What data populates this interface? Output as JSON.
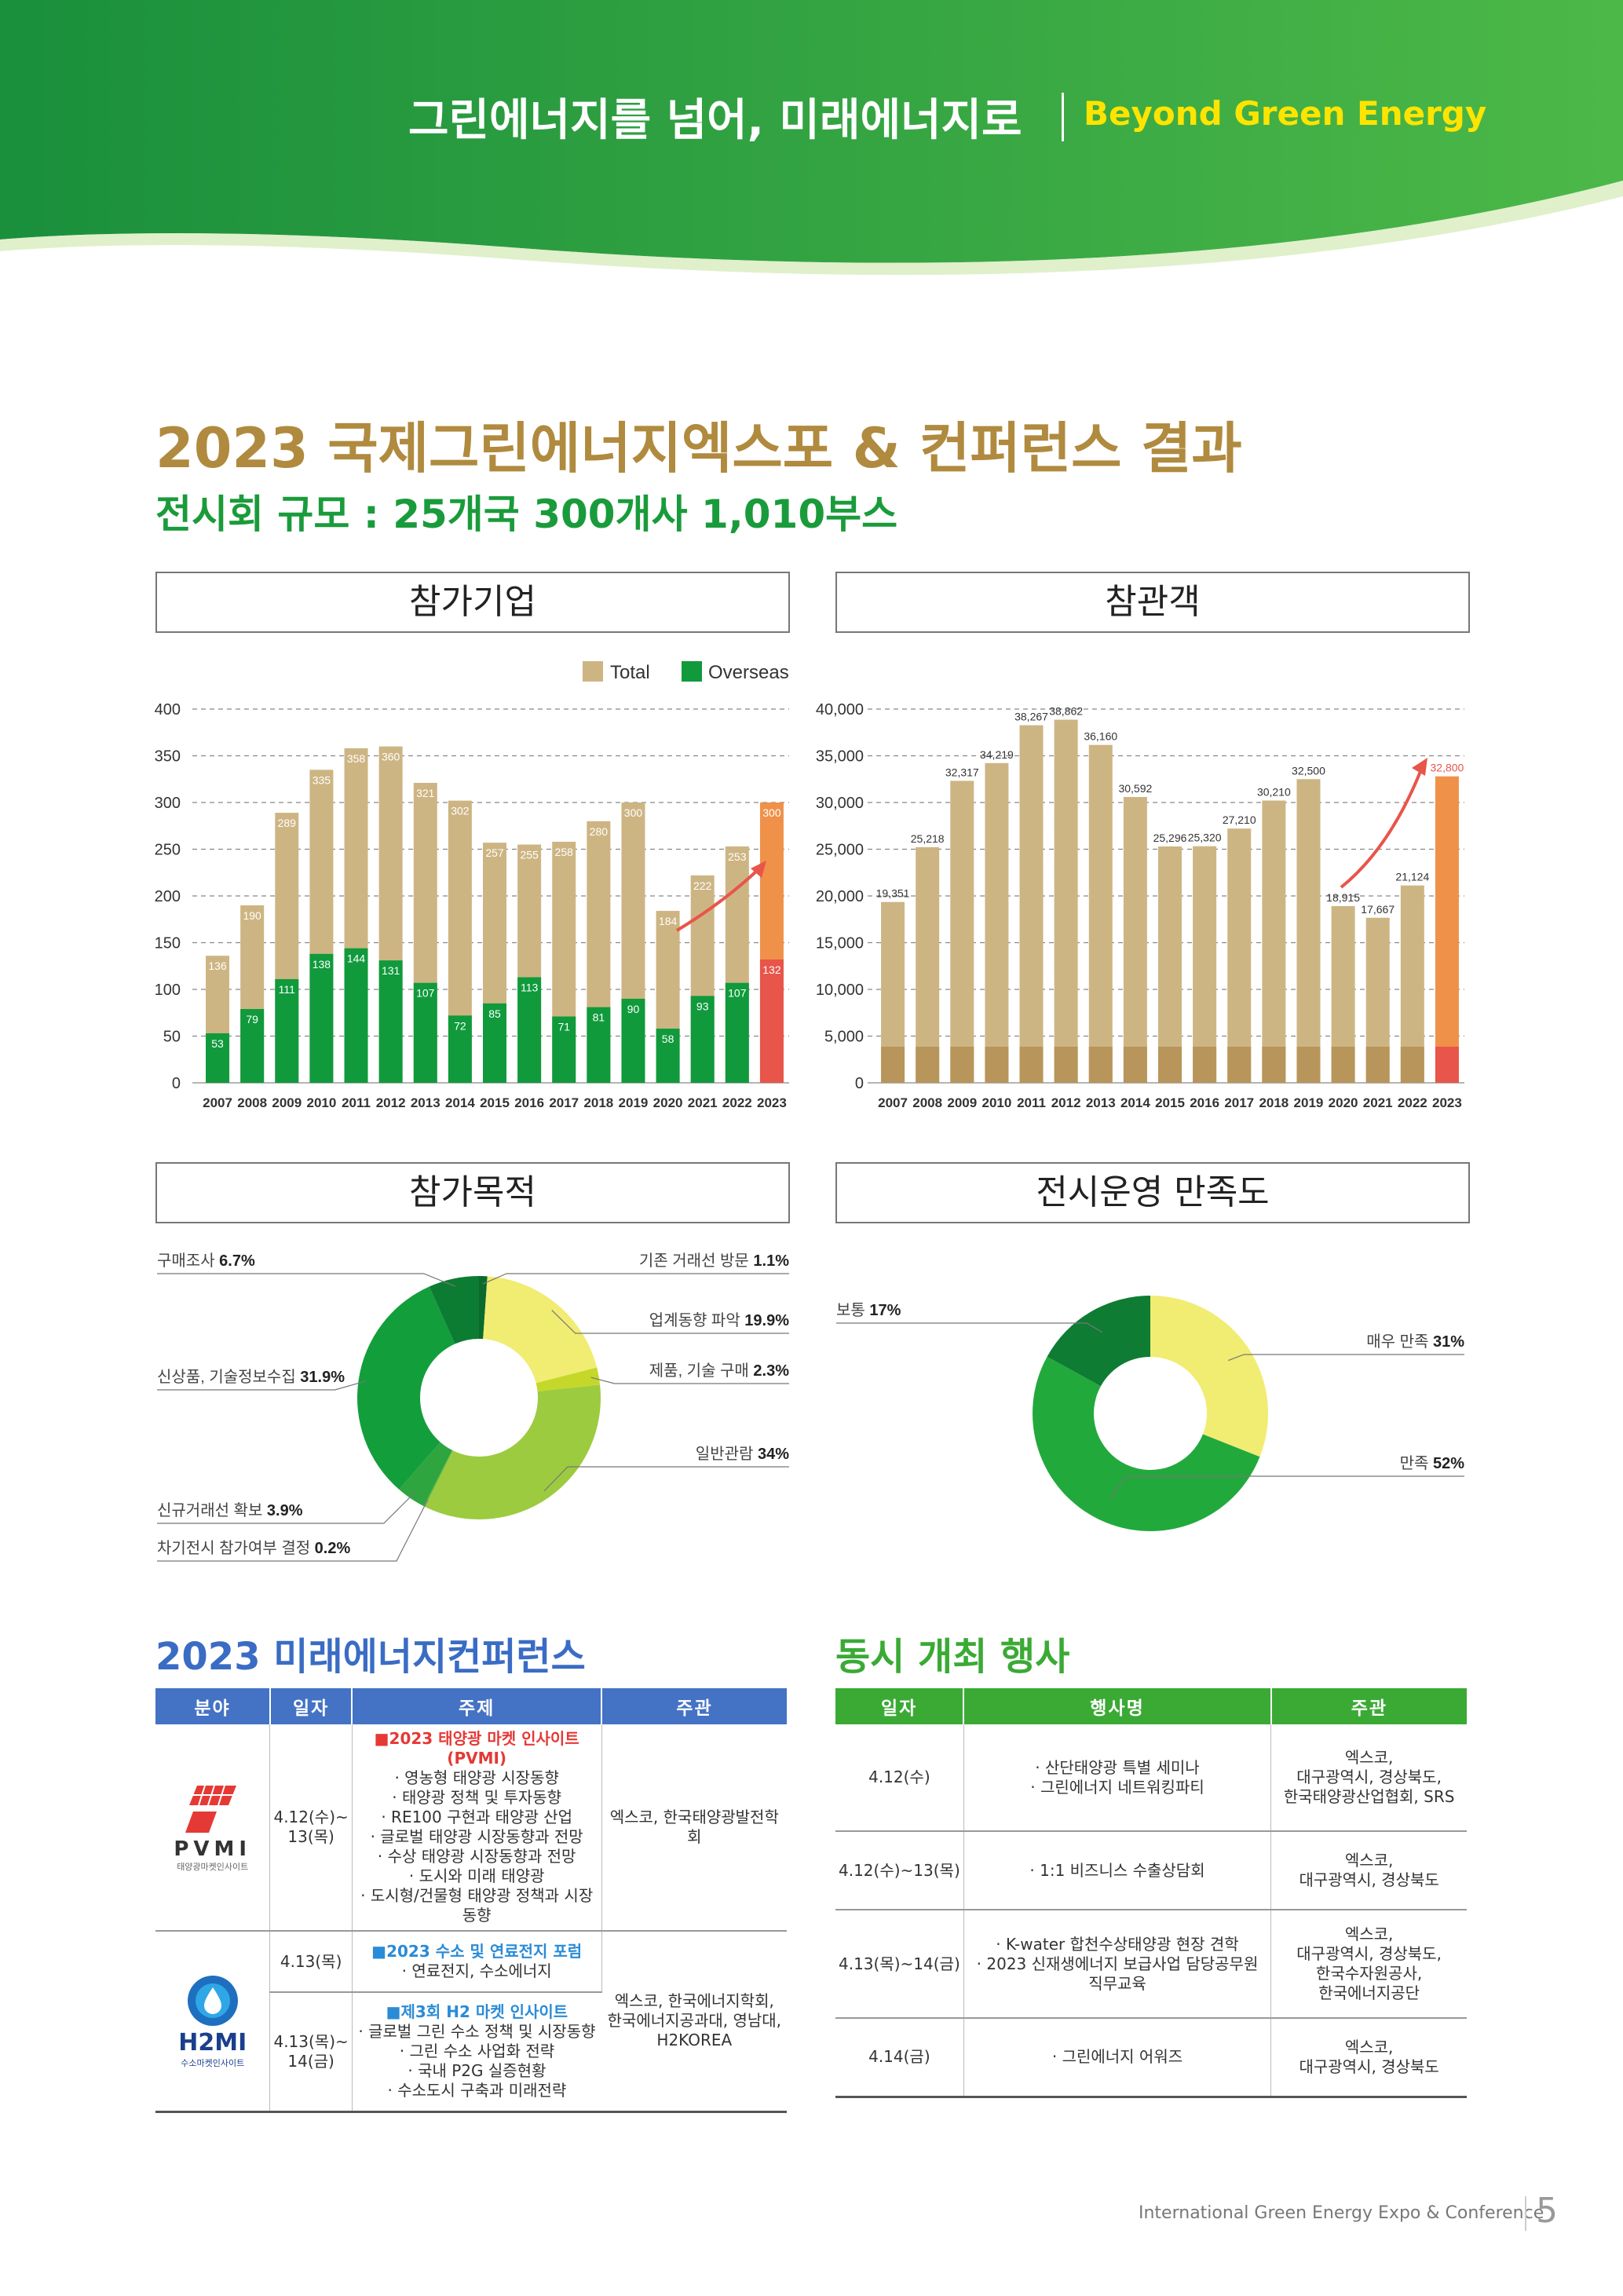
{
  "header": {
    "title": "그린에너지를 넘어, 미래에너지로",
    "subtitle": "Beyond Green Energy"
  },
  "main_title": "2023 국제그린에너지엑스포 & 컨퍼런스 결과",
  "sub_title": "전시회 규모 : 25개국 300개사 1,010부스",
  "sections": {
    "companies": "참가기업",
    "visitors": "참관객",
    "purpose": "참가목적",
    "satisfaction": "전시운영 만족도",
    "conference": "2023 미래에너지컨퍼런스",
    "events": "동시 개최 행사"
  },
  "colors": {
    "tan": "#cdb583",
    "green": "#109a3c",
    "orange": "#f0914a",
    "red": "#e8554a",
    "gold": "#b08a3e"
  },
  "chart_data": [
    {
      "type": "bar",
      "categories": [
        "2007",
        "2008",
        "2009",
        "2010",
        "2011",
        "2012",
        "2013",
        "2014",
        "2015",
        "2016",
        "2017",
        "2018",
        "2019",
        "2020",
        "2021",
        "2022",
        "2023"
      ],
      "series": [
        {
          "name": "Total",
          "values": [
            136,
            190,
            289,
            335,
            358,
            360,
            321,
            302,
            257,
            255,
            258,
            280,
            300,
            184,
            222,
            253,
            300
          ]
        },
        {
          "name": "Overseas",
          "values": [
            53,
            79,
            111,
            138,
            144,
            131,
            107,
            72,
            85,
            113,
            71,
            81,
            90,
            58,
            93,
            107,
            132
          ]
        }
      ],
      "yticks": [
        "0",
        "50",
        "100",
        "150",
        "200",
        "250",
        "300",
        "350",
        "400"
      ],
      "ylim": [
        0,
        400
      ],
      "legend": "top-right",
      "grid": true
    },
    {
      "type": "bar",
      "categories": [
        "2007",
        "2008",
        "2009",
        "2010",
        "2011",
        "2012",
        "2013",
        "2014",
        "2015",
        "2016",
        "2017",
        "2018",
        "2019",
        "2020",
        "2021",
        "2022",
        "2023"
      ],
      "values": [
        19351,
        25218,
        32317,
        34219,
        38267,
        38862,
        36160,
        30592,
        25296,
        25320,
        27210,
        30210,
        32500,
        18915,
        17667,
        21124,
        32800
      ],
      "value_labels": [
        "19,351",
        "25,218",
        "32,317",
        "34,219",
        "38,267",
        "38,862",
        "36,160",
        "30,592",
        "25,296",
        "25,320",
        "27,210",
        "30,210",
        "32,500",
        "18,915",
        "17,667",
        "21,124",
        "32,800"
      ],
      "yticks": [
        "0",
        "5,000",
        "10,000",
        "15,000",
        "20,000",
        "25,000",
        "30,000",
        "35,000",
        "40,000"
      ],
      "ylim": [
        0,
        40000
      ],
      "grid": true
    },
    {
      "type": "pie",
      "slices": [
        {
          "label": "기존 거래선 방문",
          "value": 1.1,
          "text": "1.1%",
          "color": "#0b6b2c"
        },
        {
          "label": "업계동향 파악",
          "value": 19.9,
          "text": "19.9%",
          "color": "#f1ec72"
        },
        {
          "label": "제품, 기술 구매",
          "value": 2.3,
          "text": "2.3%",
          "color": "#c5d82a"
        },
        {
          "label": "일반관람",
          "value": 34,
          "text": "34%",
          "color": "#9ccb3f"
        },
        {
          "label": "차기전시 참가여부 결정",
          "value": 0.2,
          "text": "0.2%",
          "color": "#6cb83a"
        },
        {
          "label": "신규거래선 확보",
          "value": 3.9,
          "text": "3.9%",
          "color": "#2ea53f"
        },
        {
          "label": "신상품, 기술정보수집",
          "value": 31.9,
          "text": "31.9%",
          "color": "#139e3c"
        },
        {
          "label": "구매조사",
          "value": 6.7,
          "text": "6.7%",
          "color": "#0d7c33"
        }
      ]
    },
    {
      "type": "pie",
      "slices": [
        {
          "label": "매우 만족",
          "value": 31,
          "text": "31%",
          "color": "#f1ec72"
        },
        {
          "label": "만족",
          "value": 52,
          "text": "52%",
          "color": "#22a93c"
        },
        {
          "label": "보통",
          "value": 17,
          "text": "17%",
          "color": "#0e7c33"
        }
      ]
    }
  ],
  "conference_table": {
    "headers": [
      "분야",
      "일자",
      "주제",
      "주관"
    ],
    "pvmi": {
      "logo": "PVMI",
      "logo_sub": "태양광마켓인사이트",
      "date": "4.12(수)~ 13(목)",
      "topic_title": "■2023 태양광 마켓 인사이트(PVMI)",
      "topics": [
        "· 영농형 태양광 시장동향",
        "· 태양광 정책 및 투자동향",
        "· RE100 구현과 태양광 산업",
        "· 글로벌 태양광 시장동향과 전망",
        "· 수상 태양광 시장동향과 전망",
        "· 도시와 미래 태양광",
        "· 도시형/건물형 태양광 정책과 시장동향"
      ],
      "host": "엑스코, 한국태양광발전학회"
    },
    "h2mi": {
      "logo": "H2MI",
      "logo_sub": "수소마켓인사이트",
      "row1_date": "4.13(목)",
      "row1_title": "■2023 수소 및 연료전지 포럼",
      "row1_topics": [
        "· 연료전지, 수소에너지"
      ],
      "row2_date": "4.13(목)~ 14(금)",
      "row2_title": "■제3회 H2 마켓 인사이트",
      "row2_topics": [
        "· 글로벌 그린 수소 정책 및 시장동향",
        "· 그린 수소 사업화 전략",
        "· 국내 P2G 실증현황",
        "· 수소도시 구축과 미래전략"
      ],
      "host": "엑스코, 한국에너지학회, 한국에너지공과대, 영남대, H2KOREA"
    }
  },
  "events_table": {
    "headers": [
      "일자",
      "행사명",
      "주관"
    ],
    "rows": [
      {
        "date": "4.12(수)",
        "name": "· 산단태양광 특별 세미나\n· 그린에너지 네트워킹파티",
        "host": "엑스코,\n대구광역시, 경상북도,\n한국태양광산업협회, SRS"
      },
      {
        "date": "4.12(수)~13(목)",
        "name": "· 1:1 비즈니스 수출상담회",
        "host": "엑스코,\n대구광역시, 경상북도"
      },
      {
        "date": "4.13(목)~14(금)",
        "name": "· K-water 합천수상태양광 현장 견학\n· 2023 신재생에너지 보급사업 담당공무원\n직무교육",
        "host": "엑스코,\n대구광역시, 경상북도,\n한국수자원공사,\n한국에너지공단"
      },
      {
        "date": "4.14(금)",
        "name": "· 그린에너지 어워즈",
        "host": "엑스코,\n대구광역시, 경상북도"
      }
    ]
  },
  "footer": {
    "text": "International Green Energy Expo & Conference",
    "page": "5"
  }
}
